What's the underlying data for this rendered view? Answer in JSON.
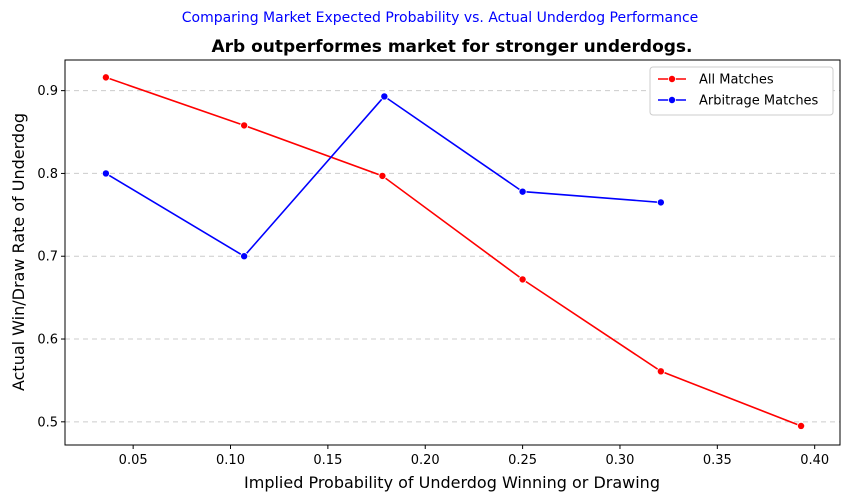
{
  "chart_data": {
    "type": "line",
    "suptitle": "Comparing Market Expected Probability vs. Actual Underdog Performance",
    "title": "Arb outperformes market for stronger underdogs.",
    "xlabel": "Implied Probability of Underdog Winning or Drawing",
    "ylabel": "Actual Win/Draw Rate of Underdog",
    "xlim": [
      0.015,
      0.413
    ],
    "ylim": [
      0.472,
      0.937
    ],
    "xticks": [
      0.05,
      0.1,
      0.15,
      0.2,
      0.25,
      0.3,
      0.35,
      0.4
    ],
    "xtick_labels": [
      "0.05",
      "0.10",
      "0.15",
      "0.20",
      "0.25",
      "0.30",
      "0.35",
      "0.40"
    ],
    "yticks": [
      0.5,
      0.6,
      0.7,
      0.8,
      0.9
    ],
    "ytick_labels": [
      "0.5",
      "0.6",
      "0.7",
      "0.8",
      "0.9"
    ],
    "grid": "y-dashed",
    "legend": "top-right",
    "series": [
      {
        "name": "All Matches",
        "color": "#ff0000",
        "x": [
          0.036,
          0.107,
          0.178,
          0.25,
          0.321,
          0.393
        ],
        "y": [
          0.916,
          0.858,
          0.797,
          0.672,
          0.561,
          0.495
        ]
      },
      {
        "name": "Arbitrage Matches",
        "color": "#0000ff",
        "x": [
          0.036,
          0.107,
          0.179,
          0.25,
          0.321
        ],
        "y": [
          0.8,
          0.7,
          0.893,
          0.778,
          0.765
        ]
      }
    ]
  }
}
